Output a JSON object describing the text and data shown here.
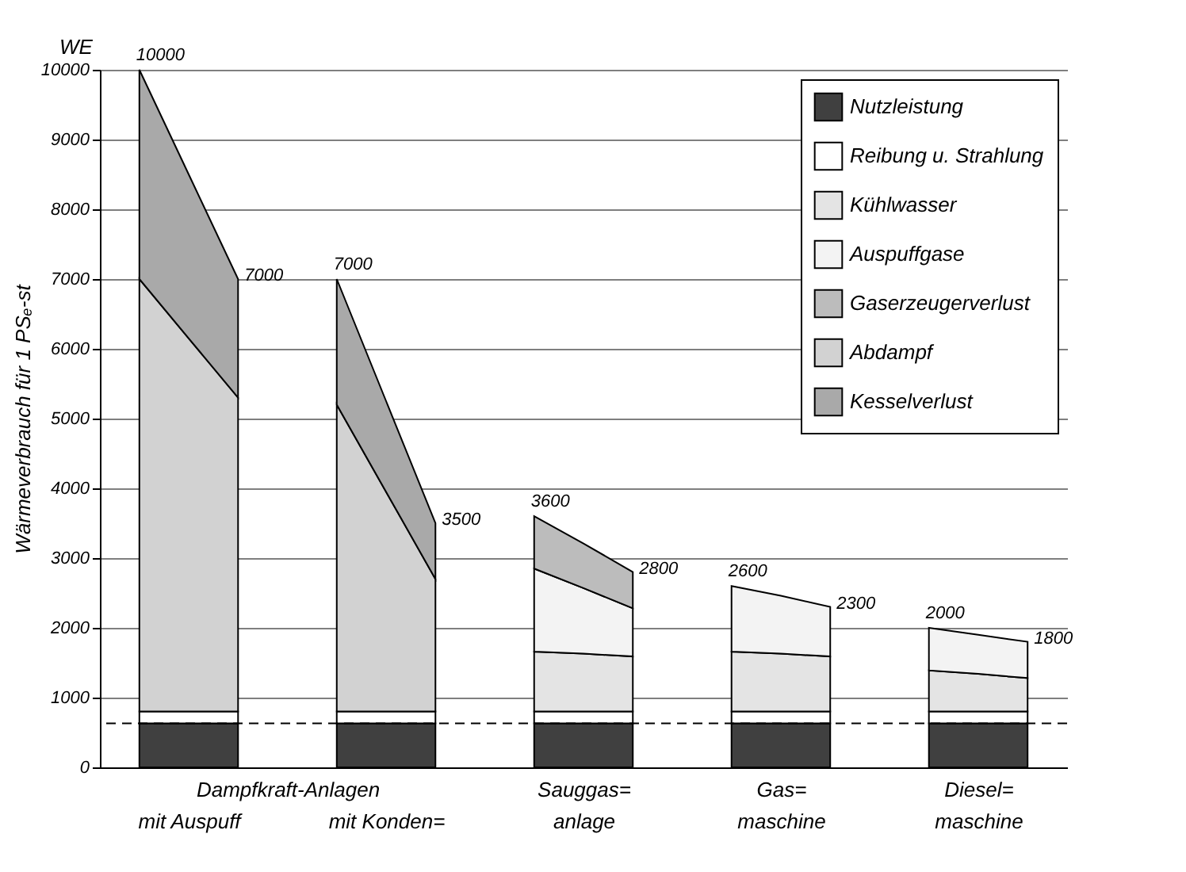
{
  "chart_data": {
    "type": "area",
    "stacked": true,
    "ylabel": "Wärmeverbrauch für 1 PSₑ-st",
    "annotations": [
      "WE"
    ],
    "categories": [
      null,
      "mit Auspuff",
      null,
      "Dampfkraft-Anlagen",
      null,
      "mit Konden=",
      null,
      null,
      null,
      "Sauggas=\nanlage",
      null,
      null,
      null,
      "Gas=\nmaschine",
      null,
      null,
      null,
      "Diesel=\nmaschine",
      null
    ],
    "series": [
      {
        "name": "Nutzleistung",
        "color": "#404040",
        "values": [
          630,
          630,
          630,
          null,
          630,
          630,
          630,
          null,
          630,
          630,
          630,
          null,
          630,
          630,
          630,
          null,
          630,
          630,
          630
        ]
      },
      {
        "name": "Reibung u. Strahlung",
        "color": "#ffffff",
        "values": [
          170,
          170,
          170,
          null,
          170,
          170,
          170,
          null,
          170,
          170,
          170,
          null,
          170,
          170,
          170,
          null,
          170,
          170,
          170
        ]
      },
      {
        "name": "Kühlwasser",
        "color": "#e4e4e4",
        "values": [
          null,
          null,
          null,
          null,
          null,
          null,
          null,
          null,
          860,
          830,
          790,
          null,
          860,
          830,
          790,
          null,
          590,
          540,
          480
        ]
      },
      {
        "name": "Auspuffgase",
        "color": "#f3f3f3",
        "values": [
          null,
          null,
          null,
          null,
          null,
          null,
          null,
          null,
          1190,
          940,
          690,
          null,
          940,
          830,
          710,
          null,
          610,
          560,
          520
        ]
      },
      {
        "name": "Gaserzeugerverlust",
        "color": "#bcbcbc",
        "values": [
          null,
          null,
          null,
          null,
          null,
          null,
          null,
          null,
          750,
          640,
          520,
          null,
          null,
          null,
          null,
          null,
          null,
          null,
          null
        ]
      },
      {
        "name": "Abdampf",
        "color": "#d2d2d2",
        "values": [
          6200,
          5350,
          4500,
          null,
          4400,
          3150,
          1900,
          null,
          null,
          null,
          null,
          null,
          null,
          null,
          null,
          null,
          null,
          null,
          null
        ]
      },
      {
        "name": "Kesselverlust",
        "color": "#a9a9a9",
        "values": [
          3000,
          2350,
          1700,
          null,
          1800,
          1300,
          800,
          null,
          null,
          null,
          null,
          null,
          null,
          null,
          null,
          null,
          null,
          null,
          null
        ]
      }
    ],
    "totals": [
      "10000",
      null,
      "7000",
      null,
      "7000",
      null,
      "3500",
      null,
      "3600",
      null,
      "2800",
      null,
      "2600",
      null,
      "2300",
      null,
      "2000",
      null,
      "1800"
    ],
    "ref_lines": [
      {
        "axis": "y",
        "value": 630,
        "label": null,
        "color": "#000000",
        "line_style": "dashed"
      }
    ],
    "ylim": [
      0,
      10000
    ],
    "yticks": [
      0,
      1000,
      2000,
      3000,
      4000,
      5000,
      6000,
      7000,
      8000,
      9000,
      10000
    ],
    "grid": "y",
    "legend": "top right"
  }
}
